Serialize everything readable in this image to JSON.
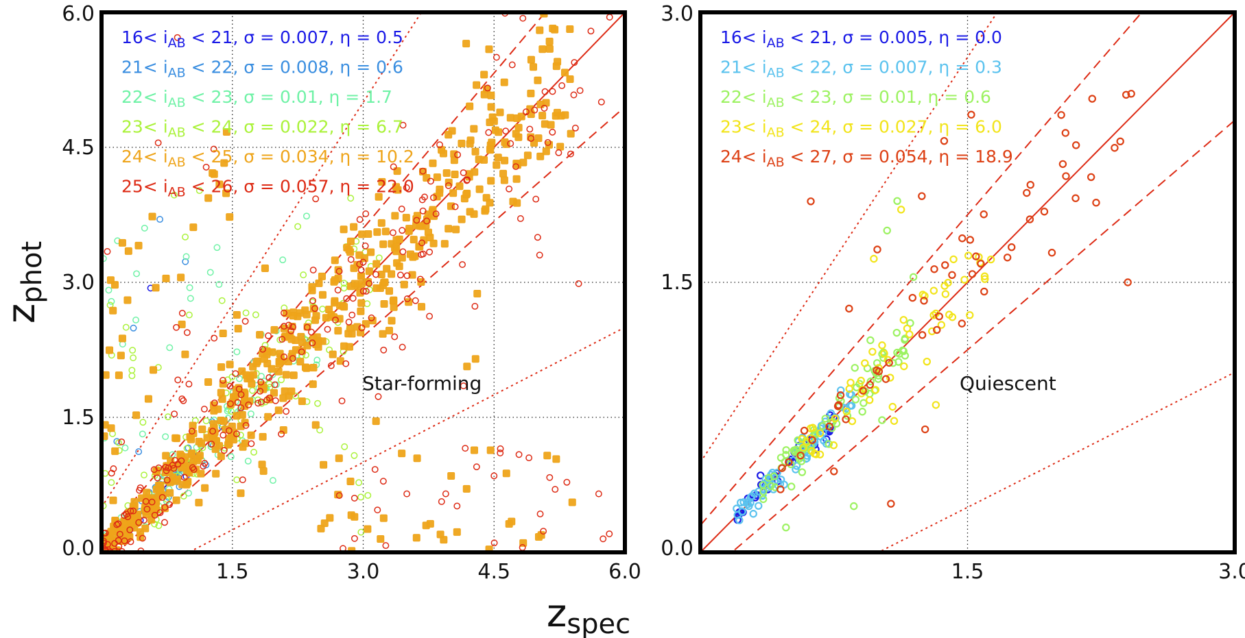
{
  "figure": {
    "xlabel": "z",
    "xlabel_sub": "spec",
    "ylabel": "z",
    "ylabel_sub": "phot"
  },
  "chart_data": [
    {
      "type": "scatter",
      "panel": "left",
      "annotation": "Star-forming",
      "xlim": [
        0.0,
        6.0
      ],
      "ylim": [
        0.0,
        6.0
      ],
      "xticks": [
        "1.5",
        "3.0",
        "4.5",
        "6.0"
      ],
      "yticks": [
        "0.0",
        "1.5",
        "3.0",
        "4.5",
        "6.0"
      ],
      "grid": true,
      "reference_lines": {
        "solid": "y = x",
        "dashed": "y = x ± 0.15(1+x)",
        "dotted": "y = x ± 0.5(1+x)"
      },
      "legend": [
        {
          "range": "16<",
          "mag": "i",
          "sub": "AB",
          "rest": "< 21, σ = 0.007, η = 0.5",
          "color": "#1a1ae6"
        },
        {
          "range": "21<",
          "mag": "i",
          "sub": "AB",
          "rest": "< 22, σ = 0.008, η = 0.6",
          "color": "#3a8ee0"
        },
        {
          "range": "22<",
          "mag": "i",
          "sub": "AB",
          "rest": "< 23, σ = 0.01, η = 1.7",
          "color": "#6ff2a6"
        },
        {
          "range": "23<",
          "mag": "i",
          "sub": "AB",
          "rest": "< 24, σ = 0.022, η = 6.7",
          "color": "#aaf23a"
        },
        {
          "range": "24<",
          "mag": "i",
          "sub": "AB",
          "rest": "< 25, σ = 0.034, η = 10.2",
          "color": "#eea41a"
        },
        {
          "range": "25<",
          "mag": "i",
          "sub": "AB",
          "rest": "< 26, σ = 0.057, η = 22.0",
          "color": "#dd2a14"
        }
      ],
      "series": [
        {
          "name": "16<iAB<21",
          "marker": "ring",
          "n": 30,
          "zmax": 1.1,
          "scatter": 0.035,
          "outlier_frac": 0.1
        },
        {
          "name": "21<iAB<22",
          "marker": "ring",
          "n": 50,
          "zmax": 1.4,
          "scatter": 0.05,
          "outlier_frac": 0.12
        },
        {
          "name": "22<iAB<23",
          "marker": "ring",
          "n": 120,
          "zmax": 2.6,
          "scatter": 0.07,
          "outlier_frac": 0.28
        },
        {
          "name": "23<iAB<24",
          "marker": "ring",
          "n": 140,
          "zmax": 3.2,
          "scatter": 0.09,
          "outlier_frac": 0.3
        },
        {
          "name": "24<iAB<25",
          "marker": "square",
          "n": 620,
          "zmax": 5.4,
          "scatter": 0.09,
          "outlier_frac": 0.17
        },
        {
          "name": "25<iAB<26",
          "marker": "ring",
          "n": 250,
          "zmax": 5.85,
          "scatter": 0.11,
          "outlier_frac": 0.22
        }
      ],
      "notable_outliers": [
        {
          "x": 0.65,
          "y": 4.55
        },
        {
          "x": 0.87,
          "y": 5.72
        },
        {
          "x": 1.2,
          "y": 4.28
        },
        {
          "x": 5.0,
          "y": 3.5
        },
        {
          "x": 4.5,
          "y": 0.85
        },
        {
          "x": 5.2,
          "y": 0.7
        },
        {
          "x": 5.7,
          "y": 0.65
        },
        {
          "x": 5.75,
          "y": 0.15
        },
        {
          "x": 4.15,
          "y": 1.85
        },
        {
          "x": 3.5,
          "y": 0.65
        },
        {
          "x": 4.3,
          "y": 0.95
        },
        {
          "x": 4.9,
          "y": 1.05
        }
      ]
    },
    {
      "type": "scatter",
      "panel": "right",
      "annotation": "Quiescent",
      "xlim": [
        0.0,
        3.0
      ],
      "ylim": [
        0.0,
        3.0
      ],
      "xticks": [
        "1.5",
        "3.0"
      ],
      "yticks": [
        "0.0",
        "1.5",
        "3.0"
      ],
      "grid": true,
      "reference_lines": {
        "solid": "y = x",
        "dashed": "y = x ± 0.15(1+x)",
        "dotted": "y = x ± 0.5(1+x)"
      },
      "legend": [
        {
          "range": "16<",
          "mag": "i",
          "sub": "AB",
          "rest": "< 21, σ = 0.005, η = 0.0",
          "color": "#1a1ae6"
        },
        {
          "range": "21<",
          "mag": "i",
          "sub": "AB",
          "rest": "< 22, σ = 0.007, η = 0.3",
          "color": "#5ac2ee"
        },
        {
          "range": "22<",
          "mag": "i",
          "sub": "AB",
          "rest": "< 23, σ = 0.01, η = 0.6",
          "color": "#9cf261"
        },
        {
          "range": "23<",
          "mag": "i",
          "sub": "AB",
          "rest": "< 24, σ = 0.027, η = 6.0",
          "color": "#f2e41a"
        },
        {
          "range": "24<",
          "mag": "i",
          "sub": "AB",
          "rest": "< 27, σ = 0.054, η = 18.9",
          "color": "#dd4014"
        }
      ],
      "series": [
        {
          "name": "16<iAB<21",
          "marker": "ring",
          "n": 40,
          "zmin": 0.16,
          "zmax": 0.75,
          "scatter": 0.02,
          "outlier_frac": 0.0
        },
        {
          "name": "21<iAB<22",
          "marker": "ring",
          "n": 70,
          "zmin": 0.2,
          "zmax": 0.85,
          "scatter": 0.025,
          "outlier_frac": 0.03
        },
        {
          "name": "22<iAB<23",
          "marker": "ring",
          "n": 80,
          "zmin": 0.35,
          "zmax": 1.2,
          "scatter": 0.03,
          "outlier_frac": 0.05
        },
        {
          "name": "23<iAB<24",
          "marker": "ring",
          "n": 60,
          "zmin": 0.55,
          "zmax": 1.65,
          "scatter": 0.045,
          "outlier_frac": 0.1
        },
        {
          "name": "24<iAB<27",
          "marker": "ring",
          "n": 55,
          "zmin": 0.45,
          "zmax": 2.45,
          "scatter": 0.06,
          "outlier_frac": 0.2
        }
      ],
      "notable_outliers": [
        {
          "x": 0.62,
          "y": 1.95
        },
        {
          "x": 2.4,
          "y": 1.5
        },
        {
          "x": 1.07,
          "y": 0.27
        },
        {
          "x": 2.05,
          "y": 2.33
        },
        {
          "x": 2.2,
          "y": 2.52
        },
        {
          "x": 1.85,
          "y": 1.85
        },
        {
          "x": 0.45,
          "y": 0.35
        },
        {
          "x": 0.75,
          "y": 0.45
        }
      ]
    }
  ]
}
